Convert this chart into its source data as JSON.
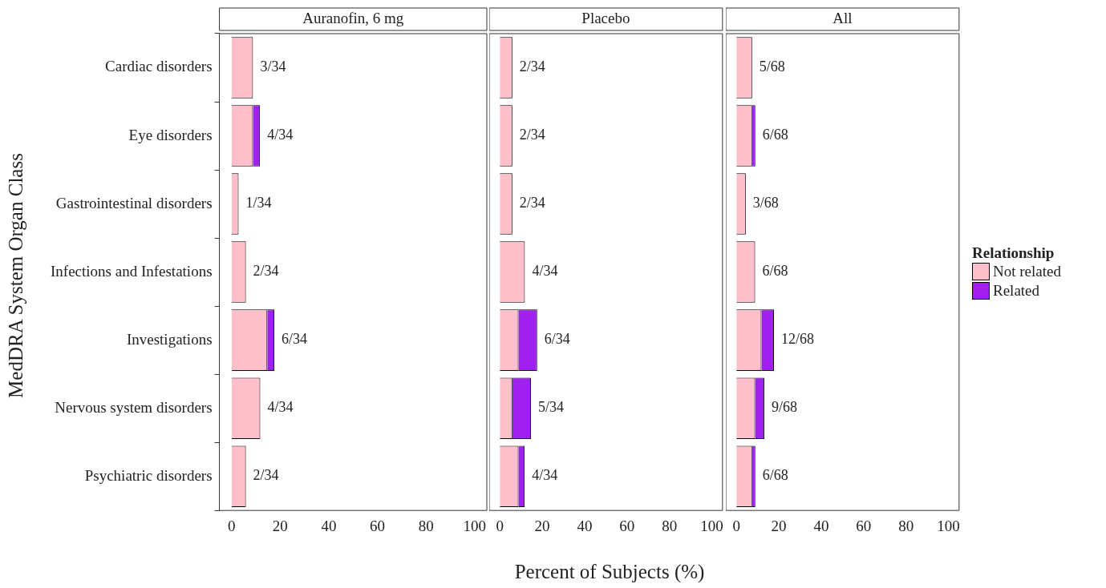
{
  "chart_data": [
    {
      "type": "bar",
      "orientation": "horizontal",
      "stacked": true,
      "title": "Auranofin, 6 mg",
      "xlabel": "Percent of Subjects (%)",
      "ylabel": "MedDRA System Organ Class",
      "categories": [
        "Cardiac disorders",
        "Eye disorders",
        "Gastrointestinal disorders",
        "Infections and Infestations",
        "Investigations",
        "Nervous system disorders",
        "Psychiatric disorders"
      ],
      "series": [
        {
          "color": "#ffc0cb",
          "values": [
            8.8,
            8.8,
            2.9,
            5.9,
            14.7,
            11.8,
            5.9
          ]
        },
        {
          "color": "#a020f0",
          "values": [
            0,
            2.9,
            0,
            0,
            2.9,
            0,
            0
          ]
        }
      ],
      "totals": [
        "3/34",
        "4/34",
        "1/34",
        "2/34",
        "6/34",
        "4/34",
        "2/34"
      ],
      "xlim": [
        -5,
        105
      ],
      "xticks": [
        0,
        20,
        40,
        60,
        80,
        100
      ],
      "grid": false,
      "legend": false
    },
    {
      "type": "bar",
      "orientation": "horizontal",
      "stacked": true,
      "title": "Placebo",
      "categories": [
        null,
        null,
        null,
        null,
        null,
        null,
        null
      ],
      "series": [
        {
          "color": "#ffc0cb",
          "values": [
            5.9,
            5.9,
            5.9,
            11.8,
            8.8,
            5.9,
            8.8
          ]
        },
        {
          "color": "#a020f0",
          "values": [
            0,
            0,
            0,
            0,
            8.8,
            8.8,
            2.9
          ]
        }
      ],
      "totals": [
        "2/34",
        "2/34",
        "2/34",
        "4/34",
        "6/34",
        "5/34",
        "4/34"
      ],
      "xlim": [
        -5,
        105
      ],
      "xticks": [
        0,
        20,
        40,
        60,
        80,
        100
      ],
      "tick_labels": "x",
      "grid": false,
      "legend": false
    },
    {
      "type": "bar",
      "orientation": "horizontal",
      "stacked": true,
      "title": "All",
      "legend_title": "Relationship",
      "categories": [
        null,
        null,
        null,
        null,
        null,
        null,
        null
      ],
      "series": [
        {
          "name": "Not related",
          "color": "#ffc0cb",
          "values": [
            7.4,
            7.4,
            4.4,
            8.8,
            11.8,
            8.8,
            7.4
          ]
        },
        {
          "name": "Related",
          "color": "#a020f0",
          "values": [
            0,
            1.5,
            0,
            0,
            5.9,
            4.4,
            1.5
          ]
        }
      ],
      "totals": [
        "5/68",
        "6/68",
        "3/68",
        "6/68",
        "12/68",
        "9/68",
        "6/68"
      ],
      "xlim": [
        -5,
        105
      ],
      "xticks": [
        0,
        20,
        40,
        60,
        80,
        100
      ],
      "tick_labels": "x",
      "grid": false,
      "legend": "right"
    }
  ]
}
